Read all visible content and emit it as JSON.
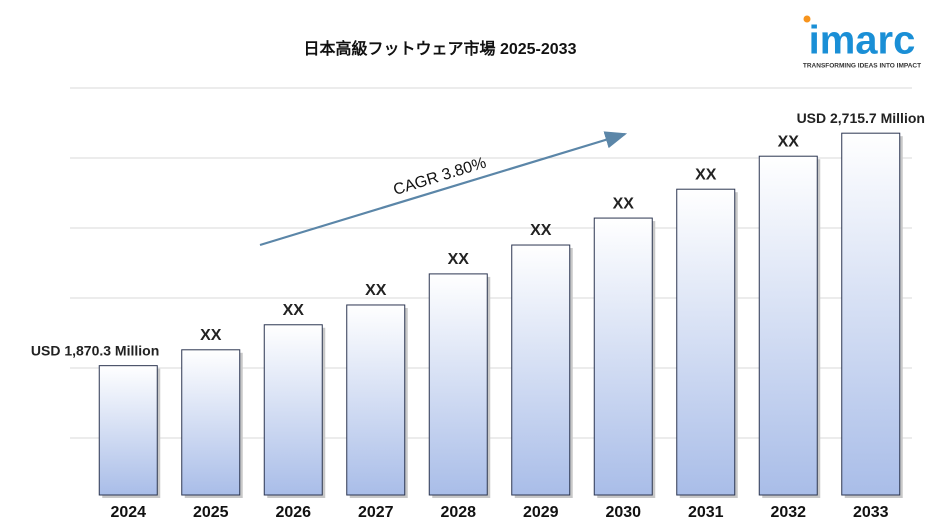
{
  "chart_data": {
    "type": "bar",
    "title": "日本高級フットウェア市場 2025-2033",
    "categories": [
      "2024",
      "2025",
      "2026",
      "2027",
      "2028",
      "2029",
      "2030",
      "2031",
      "2032",
      "2033"
    ],
    "values": [
      1870.3,
      1928,
      2019,
      2091,
      2204,
      2309,
      2407,
      2512,
      2632,
      2715.7
    ],
    "value_labels": [
      "USD 1,870.3 Million",
      "XX",
      "XX",
      "XX",
      "XX",
      "XX",
      "XX",
      "XX",
      "XX",
      "USD 2,715.7 Million"
    ],
    "ylim": [
      1400,
      2880
    ],
    "color": "#a9bde8",
    "annotation": "CAGR 3.80%",
    "logo": {
      "name": "imarc",
      "tagline": "TRANSFORMING IDEAS INTO IMPACT"
    }
  }
}
